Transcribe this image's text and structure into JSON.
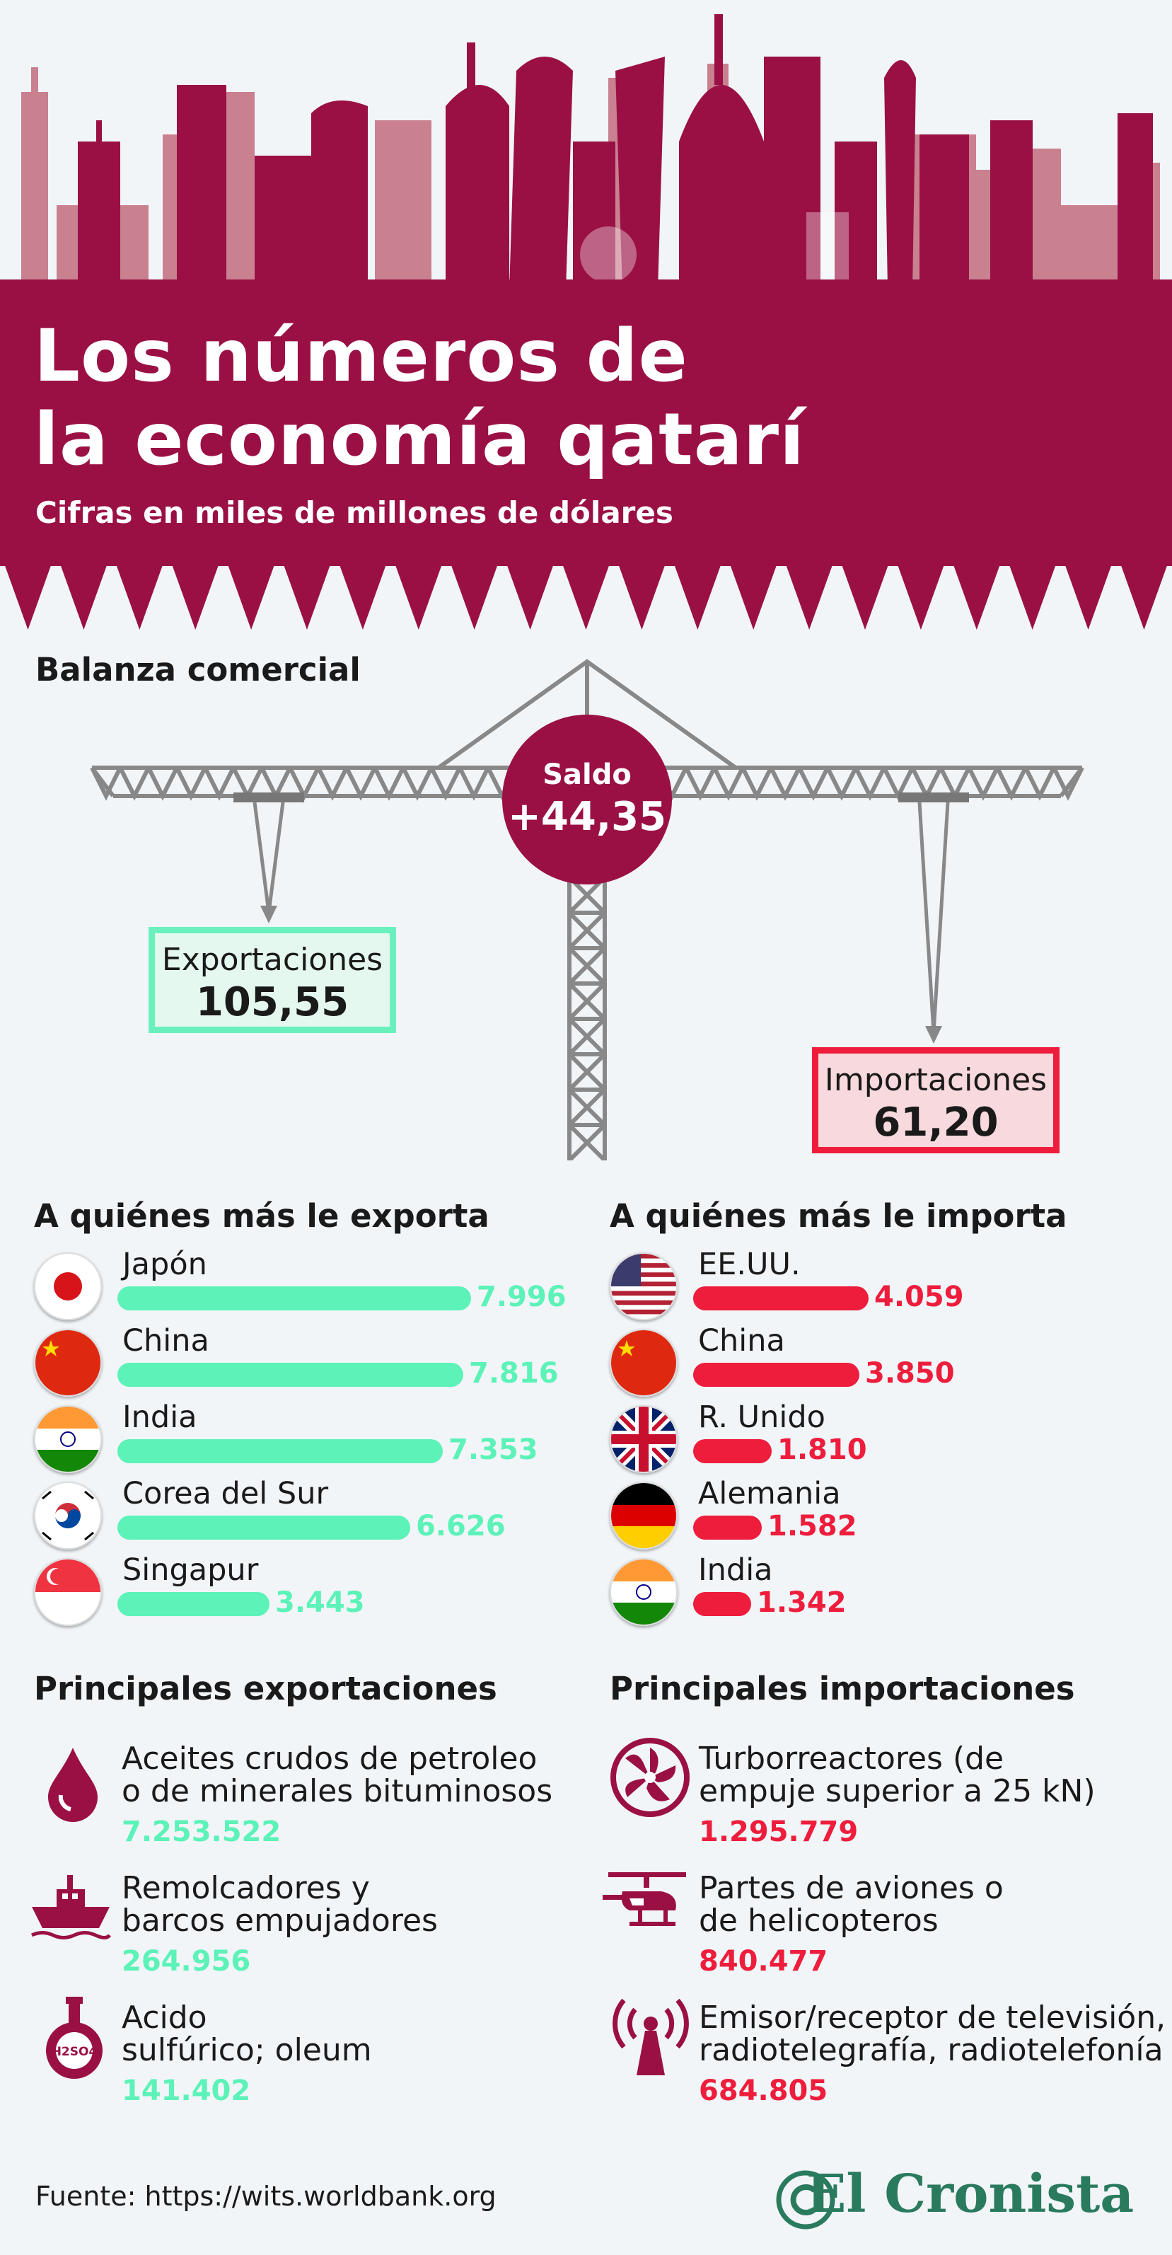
{
  "header": {
    "title_line1": "Los números de",
    "title_line2": "la economía qatarí",
    "subtitle": "Cifras en miles de millones de dólares"
  },
  "balance": {
    "heading": "Balanza comercial",
    "saldo_label": "Saldo",
    "saldo_value": "+44,35",
    "exports_label": "Exportaciones",
    "exports_value": "105,55",
    "imports_label": "Importaciones",
    "imports_value": "61,20"
  },
  "exports_by_country": {
    "heading": "A quiénes más le exporta",
    "items": [
      {
        "country": "Japón",
        "value_label": "7.996",
        "flag_icon": "japan-flag-icon"
      },
      {
        "country": "China",
        "value_label": "7.816",
        "flag_icon": "china-flag-icon"
      },
      {
        "country": "India",
        "value_label": "7.353",
        "flag_icon": "india-flag-icon"
      },
      {
        "country": "Corea del Sur",
        "value_label": "6.626",
        "flag_icon": "south-korea-flag-icon"
      },
      {
        "country": "Singapur",
        "value_label": "3.443",
        "flag_icon": "singapore-flag-icon"
      }
    ]
  },
  "imports_by_country": {
    "heading": "A quiénes más le importa",
    "items": [
      {
        "country": "EE.UU.",
        "value_label": "4.059",
        "flag_icon": "usa-flag-icon"
      },
      {
        "country": "China",
        "value_label": "3.850",
        "flag_icon": "china-flag-icon"
      },
      {
        "country": "R. Unido",
        "value_label": "1.810",
        "flag_icon": "uk-flag-icon"
      },
      {
        "country": "Alemania",
        "value_label": "1.582",
        "flag_icon": "germany-flag-icon"
      },
      {
        "country": "India",
        "value_label": "1.342",
        "flag_icon": "india-flag-icon"
      }
    ]
  },
  "chart_data": [
    {
      "type": "bar",
      "title": "A quiénes más le exporta",
      "categories": [
        "Japón",
        "China",
        "India",
        "Corea del Sur",
        "Singapur"
      ],
      "values": [
        7996,
        7816,
        7353,
        6626,
        3443
      ]
    },
    {
      "type": "bar",
      "title": "A quiénes más le importa",
      "categories": [
        "EE.UU.",
        "China",
        "R. Unido",
        "Alemania",
        "India"
      ],
      "values": [
        4059,
        3850,
        1810,
        1582,
        1342
      ]
    }
  ],
  "main_exports": {
    "heading": "Principales exportaciones",
    "items": [
      {
        "line1": "Aceites crudos de petroleo",
        "line2": "o de minerales bituminosos",
        "value": "7.253.522",
        "icon": "oil-drop-icon"
      },
      {
        "line1": "Remolcadores y",
        "line2": "barcos empujadores",
        "value": "264.956",
        "icon": "tugboat-icon"
      },
      {
        "line1": "Acido",
        "line2": "sulfúrico; oleum",
        "value": "141.402",
        "icon": "sulfuric-acid-flask-icon",
        "icon_text": "H2SO4"
      }
    ]
  },
  "main_imports": {
    "heading": "Principales importaciones",
    "items": [
      {
        "line1": "Turborreactores (de",
        "line2": "empuje superior a 25 kN)",
        "value": "1.295.779",
        "icon": "turbine-icon"
      },
      {
        "line1": "Partes de aviones o",
        "line2": "de helicopteros",
        "value": "840.477",
        "icon": "helicopter-icon"
      },
      {
        "line1": "Emisor/receptor de televisión,",
        "line2": "radiotelegrafía, radiotelefonía",
        "value": "684.805",
        "icon": "antenna-icon"
      }
    ]
  },
  "footer": {
    "source": "Fuente: https://wits.worldbank.org",
    "brand": "El Cronista"
  },
  "colors": {
    "maroon": "#9a1045",
    "export_green": "#5cf2b8",
    "import_red": "#ee1d3c",
    "background": "#f1f5f8"
  }
}
